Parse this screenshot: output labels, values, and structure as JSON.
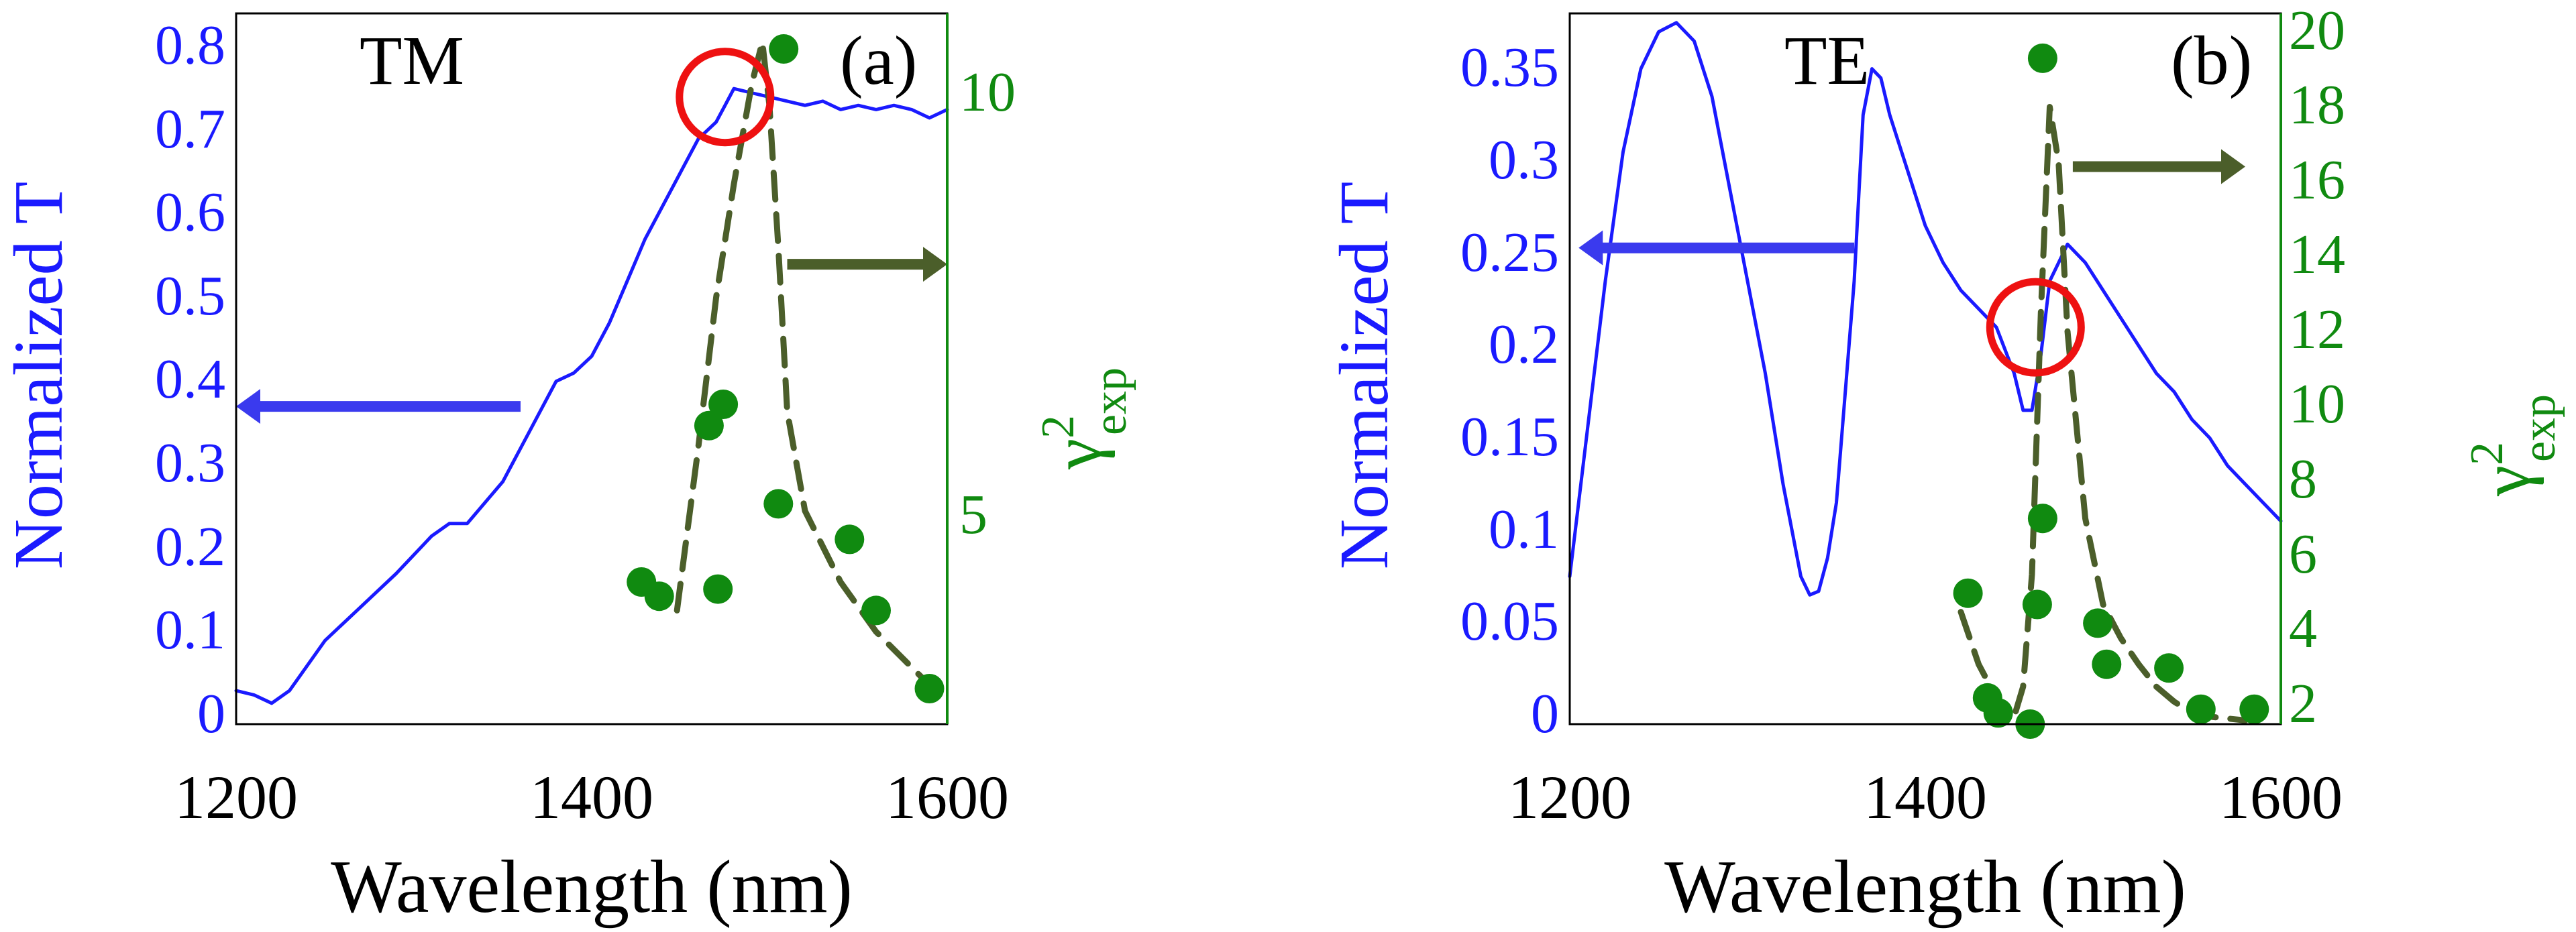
{
  "chart_data": [
    {
      "panel_label": "(a)",
      "mode_label": "TM",
      "type": "line",
      "xlabel": "Wavelength (nm)",
      "ylabel_left": "Normalized T",
      "ylabel_right_main": "γ",
      "ylabel_right_sup": "2",
      "ylabel_right_sub": "exp",
      "xlim": [
        1200,
        1600
      ],
      "ylim_left": [
        0,
        0.85
      ],
      "ylim_right": [
        1.3,
        11.3
      ],
      "xticks": [
        "1200",
        "1400",
        "1600"
      ],
      "yticks_left": [
        "0",
        "0.1",
        "0.2",
        "0.3",
        "0.4",
        "0.5",
        "0.6",
        "0.7",
        "0.8"
      ],
      "yticks_right": [
        "5",
        "10"
      ],
      "series": [
        {
          "axis": "left",
          "style": "solid-line",
          "color": "#1a1aff",
          "x": [
            1200,
            1210,
            1220,
            1230,
            1240,
            1250,
            1270,
            1290,
            1310,
            1320,
            1330,
            1350,
            1360,
            1370,
            1380,
            1390,
            1400,
            1410,
            1420,
            1430,
            1440,
            1450,
            1460,
            1470,
            1475,
            1480,
            1490,
            1500,
            1510,
            1520,
            1530,
            1540,
            1550,
            1560,
            1570,
            1580,
            1590,
            1600
          ],
          "y": [
            0.04,
            0.035,
            0.025,
            0.04,
            0.07,
            0.1,
            0.14,
            0.18,
            0.225,
            0.24,
            0.24,
            0.29,
            0.33,
            0.37,
            0.41,
            0.42,
            0.44,
            0.48,
            0.53,
            0.58,
            0.62,
            0.66,
            0.7,
            0.72,
            0.74,
            0.76,
            0.755,
            0.75,
            0.745,
            0.74,
            0.745,
            0.735,
            0.74,
            0.735,
            0.74,
            0.735,
            0.725,
            0.735
          ]
        },
        {
          "axis": "right",
          "style": "dashed-line",
          "color": "#4b5e2a",
          "x": [
            1448,
            1460,
            1470,
            1480,
            1490,
            1496,
            1500,
            1505,
            1510,
            1520,
            1540,
            1560,
            1580,
            1592
          ],
          "y": [
            2.9,
            5.2,
            7.3,
            8.9,
            10.3,
            10.9,
            10.0,
            8.0,
            5.7,
            4.3,
            3.3,
            2.6,
            2.1,
            1.8
          ]
        },
        {
          "axis": "right",
          "style": "markers",
          "color": "#108a10",
          "x": [
            1428,
            1438,
            1466,
            1471,
            1474,
            1505,
            1508,
            1545,
            1560,
            1590
          ],
          "y": [
            3.3,
            3.1,
            5.5,
            3.2,
            5.8,
            4.4,
            10.8,
            3.9,
            2.9,
            1.8
          ]
        }
      ],
      "annotations": [
        {
          "type": "circle",
          "color": "#ee1111",
          "x": 1475,
          "y_left": 0.75
        },
        {
          "type": "arrow",
          "direction": "left",
          "color": "#3a3aee",
          "x_from": 1360,
          "x_to": 1200,
          "y_left": 0.38
        },
        {
          "type": "arrow",
          "direction": "right",
          "color": "#4b5e2a",
          "x_from": 1510,
          "x_to": 1600,
          "y_left": 0.55
        }
      ]
    },
    {
      "panel_label": "(b)",
      "mode_label": "TE",
      "type": "line",
      "xlabel": "Wavelength (nm)",
      "ylabel_left": "Normalized T",
      "ylabel_right_main": "γ",
      "ylabel_right_sup": "2",
      "ylabel_right_sub": "exp",
      "xlim": [
        1200,
        1600
      ],
      "ylim_left": [
        0,
        0.385
      ],
      "ylim_right": [
        1.0,
        20.0
      ],
      "xticks": [
        "1200",
        "1400",
        "1600"
      ],
      "yticks_left": [
        "0",
        "0.05",
        "0.1",
        "0.15",
        "0.2",
        "0.25",
        "0.3",
        "0.35"
      ],
      "yticks_right": [
        "2",
        "4",
        "6",
        "8",
        "10",
        "12",
        "14",
        "16",
        "18",
        "20"
      ],
      "series": [
        {
          "axis": "left",
          "style": "solid-line",
          "color": "#1a1aff",
          "x": [
            1200,
            1210,
            1220,
            1230,
            1240,
            1250,
            1260,
            1270,
            1280,
            1290,
            1300,
            1310,
            1320,
            1330,
            1335,
            1340,
            1345,
            1350,
            1360,
            1365,
            1370,
            1375,
            1380,
            1390,
            1400,
            1410,
            1420,
            1430,
            1440,
            1450,
            1455,
            1460,
            1465,
            1470,
            1475,
            1480,
            1490,
            1500,
            1510,
            1520,
            1530,
            1540,
            1550,
            1560,
            1570,
            1580,
            1590,
            1600
          ],
          "y": [
            0.08,
            0.16,
            0.24,
            0.31,
            0.355,
            0.375,
            0.38,
            0.37,
            0.34,
            0.29,
            0.24,
            0.19,
            0.13,
            0.08,
            0.07,
            0.072,
            0.09,
            0.12,
            0.24,
            0.33,
            0.355,
            0.35,
            0.33,
            0.3,
            0.27,
            0.25,
            0.235,
            0.225,
            0.215,
            0.19,
            0.17,
            0.17,
            0.2,
            0.24,
            0.25,
            0.26,
            0.25,
            0.235,
            0.22,
            0.205,
            0.19,
            0.18,
            0.165,
            0.155,
            0.14,
            0.13,
            0.12,
            0.11
          ]
        },
        {
          "axis": "right",
          "style": "dashed-line",
          "color": "#4b5e2a",
          "x": [
            1420,
            1430,
            1440,
            1450,
            1455,
            1460,
            1465,
            1470,
            1475,
            1480,
            1490,
            1500,
            1510,
            1520,
            1530,
            1540,
            1550,
            1560,
            1570,
            1580
          ],
          "y": [
            4.0,
            2.6,
            1.7,
            1.2,
            2.0,
            5.0,
            12.0,
            17.5,
            16.0,
            11.5,
            6.5,
            4.2,
            3.3,
            2.6,
            2.0,
            1.6,
            1.3,
            1.2,
            1.15,
            1.1
          ]
        },
        {
          "axis": "right",
          "style": "markers",
          "color": "#108a10",
          "x": [
            1424,
            1435,
            1441,
            1459,
            1463,
            1466,
            1466,
            1497,
            1502,
            1537,
            1555,
            1585
          ],
          "y": [
            4.5,
            1.7,
            1.3,
            1.0,
            4.2,
            6.5,
            18.8,
            3.7,
            2.6,
            2.5,
            1.4,
            1.4
          ]
        }
      ],
      "annotations": [
        {
          "type": "circle",
          "color": "#ee1111",
          "x": 1462,
          "y_left": 0.215
        },
        {
          "type": "arrow",
          "direction": "left",
          "color": "#3a3aee",
          "x_from": 1360,
          "x_to": 1205,
          "y_left": 0.258
        },
        {
          "type": "arrow",
          "direction": "right",
          "color": "#4b5e2a",
          "x_from": 1483,
          "x_to": 1580,
          "y_left": 0.302
        }
      ]
    }
  ]
}
